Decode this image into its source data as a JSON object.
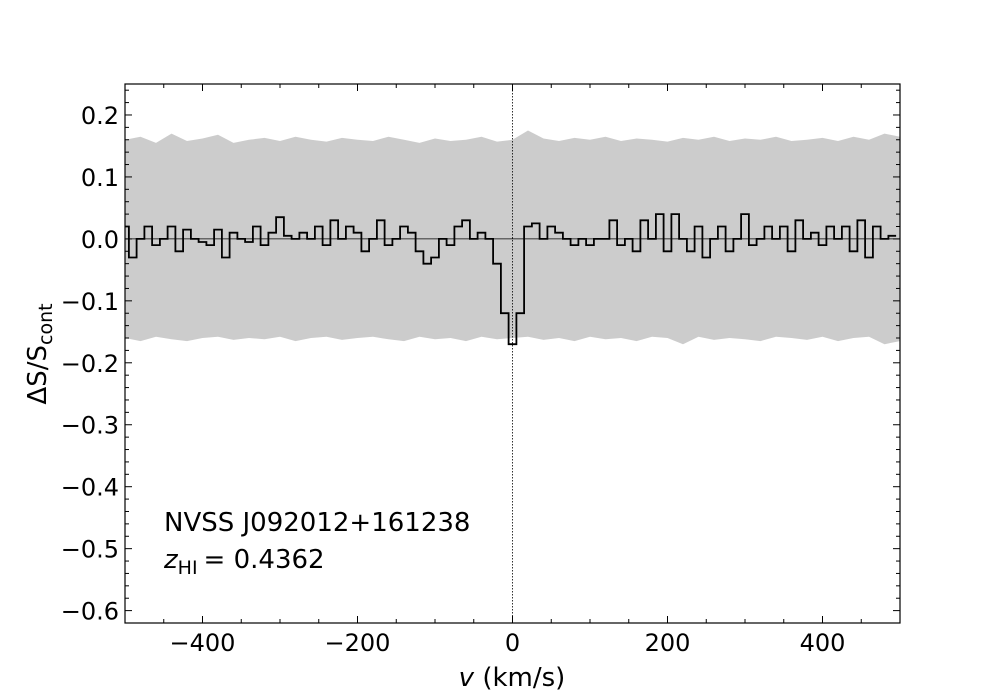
{
  "chart_data": {
    "type": "line",
    "style": "step",
    "xlabel_var": "v",
    "xlabel_unit": " (km/s)",
    "ylabel_main": "ΔS/S",
    "ylabel_sub": "cont",
    "xlim": [
      -500,
      500
    ],
    "ylim": [
      -0.62,
      0.25
    ],
    "xticks": [
      -400,
      -200,
      0,
      200,
      400
    ],
    "xtick_labels": [
      "−400",
      "−200",
      "0",
      "200",
      "400"
    ],
    "yticks": [
      0.2,
      0.1,
      0.0,
      -0.1,
      -0.2,
      -0.3,
      -0.4,
      -0.5,
      -0.6
    ],
    "ytick_labels": [
      "0.2",
      "0.1",
      "0.0",
      "−0.1",
      "−0.2",
      "−0.3",
      "−0.4",
      "−0.5",
      "−0.6"
    ],
    "annotation_source": "NVSS J092012+161238",
    "annotation_z_var": "z",
    "annotation_z_sub": "HI",
    "annotation_z_value": "= 0.4362",
    "vline_x": 0,
    "hline_y": 0,
    "colors": {
      "band": "#cccccc",
      "line": "#000000",
      "axes": "#000000"
    },
    "band": {
      "x": [
        -500,
        -480,
        -460,
        -440,
        -420,
        -400,
        -380,
        -360,
        -340,
        -320,
        -300,
        -280,
        -260,
        -240,
        -220,
        -200,
        -180,
        -160,
        -140,
        -120,
        -100,
        -80,
        -60,
        -40,
        -20,
        0,
        20,
        40,
        60,
        80,
        100,
        120,
        140,
        160,
        180,
        200,
        220,
        240,
        260,
        280,
        300,
        320,
        340,
        360,
        380,
        400,
        420,
        440,
        460,
        480,
        500
      ],
      "upper": [
        0.16,
        0.165,
        0.155,
        0.17,
        0.158,
        0.162,
        0.168,
        0.155,
        0.16,
        0.163,
        0.158,
        0.165,
        0.16,
        0.157,
        0.163,
        0.16,
        0.158,
        0.165,
        0.16,
        0.155,
        0.162,
        0.158,
        0.16,
        0.165,
        0.157,
        0.16,
        0.175,
        0.162,
        0.158,
        0.163,
        0.16,
        0.165,
        0.158,
        0.162,
        0.16,
        0.157,
        0.163,
        0.16,
        0.165,
        0.158,
        0.162,
        0.16,
        0.165,
        0.158,
        0.16,
        0.163,
        0.158,
        0.165,
        0.16,
        0.17,
        0.165
      ],
      "lower": [
        -0.16,
        -0.165,
        -0.158,
        -0.162,
        -0.165,
        -0.16,
        -0.158,
        -0.163,
        -0.16,
        -0.162,
        -0.158,
        -0.165,
        -0.16,
        -0.158,
        -0.163,
        -0.16,
        -0.158,
        -0.162,
        -0.165,
        -0.158,
        -0.162,
        -0.16,
        -0.165,
        -0.158,
        -0.162,
        -0.16,
        -0.158,
        -0.163,
        -0.16,
        -0.165,
        -0.158,
        -0.162,
        -0.16,
        -0.165,
        -0.158,
        -0.16,
        -0.17,
        -0.158,
        -0.163,
        -0.16,
        -0.162,
        -0.165,
        -0.158,
        -0.16,
        -0.163,
        -0.158,
        -0.165,
        -0.16,
        -0.158,
        -0.17,
        -0.165
      ]
    },
    "series": [
      {
        "x": [
          -500,
          -490,
          -480,
          -470,
          -460,
          -450,
          -440,
          -430,
          -420,
          -410,
          -400,
          -390,
          -380,
          -370,
          -360,
          -350,
          -340,
          -330,
          -320,
          -310,
          -300,
          -290,
          -280,
          -270,
          -260,
          -250,
          -240,
          -230,
          -220,
          -210,
          -200,
          -190,
          -180,
          -170,
          -160,
          -150,
          -140,
          -130,
          -120,
          -110,
          -100,
          -90,
          -80,
          -70,
          -60,
          -50,
          -40,
          -30,
          -20,
          -10,
          0,
          10,
          20,
          30,
          40,
          50,
          60,
          70,
          80,
          90,
          100,
          110,
          120,
          130,
          140,
          150,
          160,
          170,
          180,
          190,
          200,
          210,
          220,
          230,
          240,
          250,
          260,
          270,
          280,
          290,
          300,
          310,
          320,
          330,
          340,
          350,
          360,
          370,
          380,
          390,
          400,
          410,
          420,
          430,
          440,
          450,
          460,
          470,
          480,
          490
        ],
        "values": [
          0.02,
          -0.03,
          0.0,
          0.02,
          -0.01,
          0.0,
          0.02,
          -0.02,
          0.015,
          0.0,
          -0.005,
          -0.01,
          0.015,
          -0.03,
          0.01,
          0.0,
          -0.005,
          0.02,
          -0.01,
          0.01,
          0.035,
          0.005,
          0.0,
          0.01,
          0.0,
          0.02,
          -0.01,
          0.03,
          0.0,
          0.02,
          0.01,
          -0.02,
          0.0,
          0.03,
          -0.01,
          0.0,
          0.02,
          0.01,
          -0.02,
          -0.04,
          -0.03,
          0.0,
          -0.01,
          0.02,
          0.03,
          0.0,
          0.01,
          0.0,
          -0.04,
          -0.12,
          -0.17,
          -0.12,
          0.02,
          0.025,
          0.0,
          0.02,
          0.01,
          0.0,
          -0.01,
          0.0,
          -0.01,
          0.0,
          0.0,
          0.03,
          -0.01,
          0.0,
          -0.02,
          0.03,
          0.0,
          0.04,
          -0.02,
          0.04,
          0.0,
          -0.02,
          0.02,
          -0.03,
          0.0,
          0.02,
          -0.02,
          0.0,
          0.04,
          -0.01,
          0.0,
          0.02,
          0.0,
          0.02,
          -0.02,
          0.03,
          0.0,
          0.01,
          -0.01,
          0.02,
          0.0,
          0.02,
          -0.02,
          0.03,
          -0.03,
          0.02,
          0.0,
          0.005
        ]
      }
    ]
  }
}
